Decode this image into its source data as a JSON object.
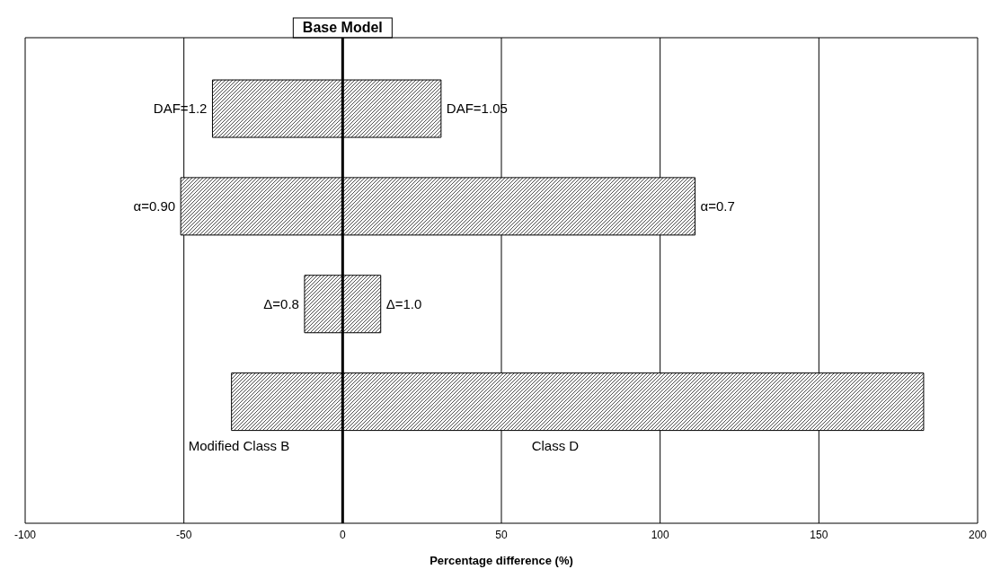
{
  "chart_data": {
    "type": "bar",
    "orientation": "horizontal",
    "xlabel": "Percentage difference (%)",
    "categories": [
      null,
      null,
      null,
      null
    ],
    "base": [
      -41,
      -51,
      -12,
      -35
    ],
    "values": [
      72,
      162,
      24,
      218
    ],
    "color": "#000000",
    "xlim": [
      -100,
      200
    ],
    "xticks": [
      -100,
      -50,
      0,
      50,
      100,
      150,
      200
    ],
    "grid": "x",
    "ref_lines": [
      {
        "axis": "x",
        "value": 0,
        "label": "Base Model",
        "color": "#000000"
      }
    ],
    "annotations": [
      "DAF=1.2",
      "DAF=1.05",
      "α=0.90",
      "α=0.7",
      "Δ=0.8",
      "Δ=1.0",
      "Modified Class B",
      "Class D"
    ]
  }
}
